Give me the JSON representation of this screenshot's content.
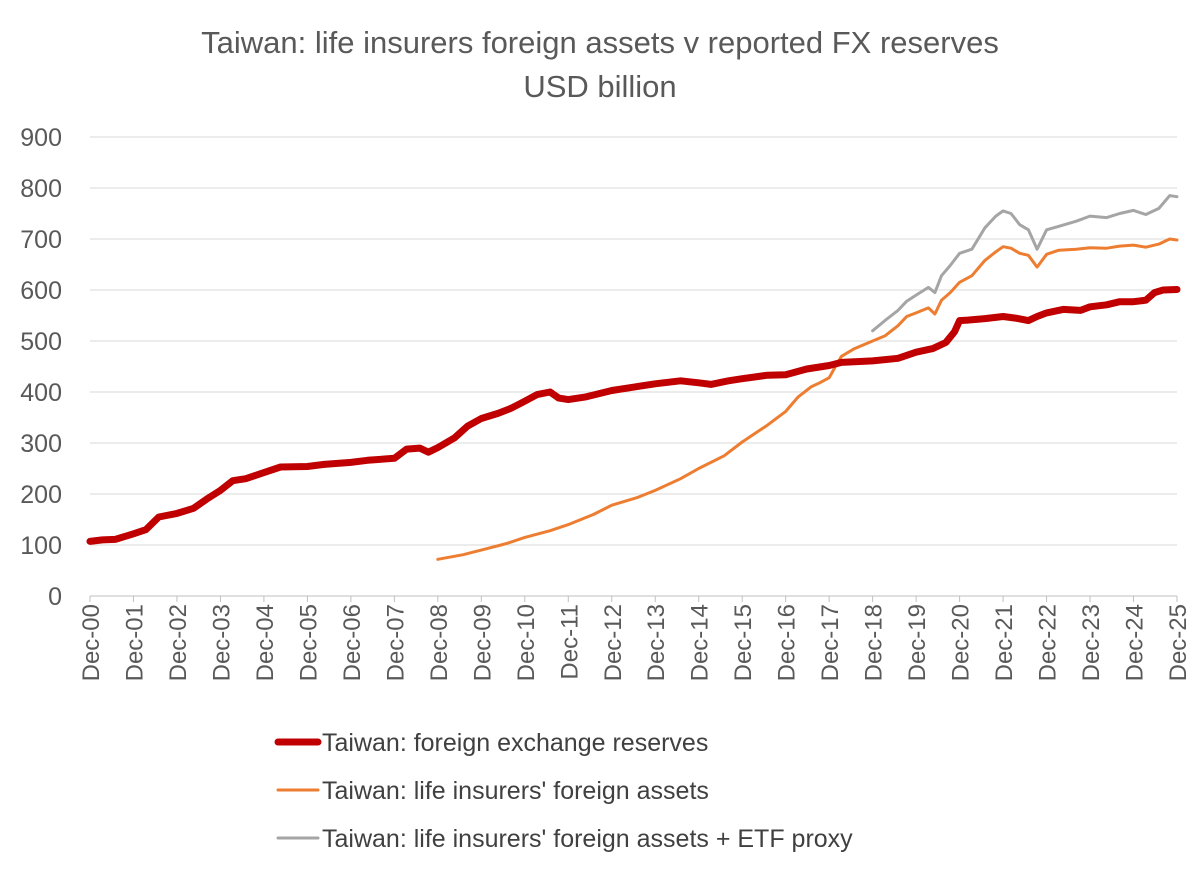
{
  "chart_data": {
    "type": "line",
    "title": "Taiwan: life insurers foreign assets v  reported FX reserves",
    "subtitle": "USD billion",
    "xlabel": "",
    "ylabel": "",
    "ylim": [
      0,
      900
    ],
    "yticks": [
      "0",
      "100",
      "200",
      "300",
      "400",
      "500",
      "600",
      "700",
      "800",
      "900"
    ],
    "xlim": [
      2000.917,
      2025.917
    ],
    "xtick_values": [
      2000.917,
      2001.917,
      2002.917,
      2003.917,
      2004.917,
      2005.917,
      2006.917,
      2007.917,
      2008.917,
      2009.917,
      2010.917,
      2011.917,
      2012.917,
      2013.917,
      2014.917,
      2015.917,
      2016.917,
      2017.917,
      2018.917,
      2019.917,
      2020.917,
      2021.917,
      2022.917,
      2023.917,
      2024.917,
      2025.917
    ],
    "xticks": [
      "Dec-00",
      "Dec-01",
      "Dec-02",
      "Dec-03",
      "Dec-04",
      "Dec-05",
      "Dec-06",
      "Dec-07",
      "Dec-08",
      "Dec-09",
      "Dec-10",
      "Dec-11",
      "Dec-12",
      "Dec-13",
      "Dec-14",
      "Dec-15",
      "Dec-16",
      "Dec-17",
      "Dec-18",
      "Dec-19",
      "Dec-20",
      "Dec-21",
      "Dec-22",
      "Dec-23",
      "Dec-24",
      "Dec-25"
    ],
    "grid": true,
    "legend_position": "bottom",
    "series": [
      {
        "name": "Taiwan: foreign exchange reserves",
        "color": "#c00000",
        "points": [
          [
            2000.917,
            107
          ],
          [
            2001.2,
            110
          ],
          [
            2001.5,
            111
          ],
          [
            2001.917,
            122
          ],
          [
            2002.2,
            130
          ],
          [
            2002.5,
            155
          ],
          [
            2002.917,
            162
          ],
          [
            2003.3,
            172
          ],
          [
            2003.6,
            190
          ],
          [
            2003.917,
            207
          ],
          [
            2004.2,
            226
          ],
          [
            2004.5,
            230
          ],
          [
            2004.917,
            242
          ],
          [
            2005.3,
            253
          ],
          [
            2005.917,
            254
          ],
          [
            2006.3,
            258
          ],
          [
            2006.917,
            262
          ],
          [
            2007.3,
            266
          ],
          [
            2007.917,
            270
          ],
          [
            2008.2,
            288
          ],
          [
            2008.5,
            290
          ],
          [
            2008.7,
            282
          ],
          [
            2008.917,
            291
          ],
          [
            2009.3,
            310
          ],
          [
            2009.6,
            333
          ],
          [
            2009.917,
            348
          ],
          [
            2010.3,
            358
          ],
          [
            2010.6,
            368
          ],
          [
            2010.917,
            382
          ],
          [
            2011.2,
            395
          ],
          [
            2011.5,
            400
          ],
          [
            2011.7,
            388
          ],
          [
            2011.917,
            385
          ],
          [
            2012.3,
            390
          ],
          [
            2012.917,
            403
          ],
          [
            2013.3,
            408
          ],
          [
            2013.917,
            416
          ],
          [
            2014.5,
            422
          ],
          [
            2014.917,
            418
          ],
          [
            2015.2,
            415
          ],
          [
            2015.6,
            422
          ],
          [
            2015.917,
            426
          ],
          [
            2016.5,
            433
          ],
          [
            2016.917,
            434
          ],
          [
            2017.4,
            445
          ],
          [
            2017.917,
            452
          ],
          [
            2018.2,
            458
          ],
          [
            2018.917,
            461
          ],
          [
            2019.5,
            466
          ],
          [
            2019.917,
            478
          ],
          [
            2020.3,
            485
          ],
          [
            2020.6,
            497
          ],
          [
            2020.8,
            518
          ],
          [
            2020.917,
            540
          ],
          [
            2021.1,
            541
          ],
          [
            2021.5,
            544
          ],
          [
            2021.917,
            548
          ],
          [
            2022.2,
            545
          ],
          [
            2022.5,
            540
          ],
          [
            2022.7,
            548
          ],
          [
            2022.917,
            555
          ],
          [
            2023.3,
            562
          ],
          [
            2023.7,
            560
          ],
          [
            2023.917,
            567
          ],
          [
            2024.3,
            571
          ],
          [
            2024.6,
            577
          ],
          [
            2024.917,
            577
          ],
          [
            2025.2,
            580
          ],
          [
            2025.4,
            595
          ],
          [
            2025.6,
            600
          ],
          [
            2025.917,
            601
          ]
        ]
      },
      {
        "name": "Taiwan: life insurers' foreign assets",
        "color": "#ed7d31",
        "points": [
          [
            2008.917,
            72
          ],
          [
            2009.5,
            81
          ],
          [
            2009.917,
            90
          ],
          [
            2010.5,
            103
          ],
          [
            2010.917,
            115
          ],
          [
            2011.5,
            128
          ],
          [
            2011.917,
            140
          ],
          [
            2012.5,
            160
          ],
          [
            2012.917,
            178
          ],
          [
            2013.5,
            193
          ],
          [
            2013.917,
            207
          ],
          [
            2014.5,
            230
          ],
          [
            2014.917,
            250
          ],
          [
            2015.5,
            275
          ],
          [
            2015.917,
            302
          ],
          [
            2016.5,
            335
          ],
          [
            2016.917,
            362
          ],
          [
            2017.2,
            390
          ],
          [
            2017.5,
            410
          ],
          [
            2017.7,
            418
          ],
          [
            2017.917,
            428
          ],
          [
            2018.05,
            448
          ],
          [
            2018.2,
            470
          ],
          [
            2018.5,
            485
          ],
          [
            2018.917,
            500
          ],
          [
            2019.2,
            510
          ],
          [
            2019.5,
            530
          ],
          [
            2019.7,
            548
          ],
          [
            2019.917,
            555
          ],
          [
            2020.2,
            565
          ],
          [
            2020.35,
            553
          ],
          [
            2020.5,
            580
          ],
          [
            2020.7,
            595
          ],
          [
            2020.917,
            615
          ],
          [
            2021.2,
            628
          ],
          [
            2021.5,
            658
          ],
          [
            2021.75,
            675
          ],
          [
            2021.917,
            685
          ],
          [
            2022.1,
            682
          ],
          [
            2022.3,
            672
          ],
          [
            2022.5,
            668
          ],
          [
            2022.7,
            645
          ],
          [
            2022.917,
            670
          ],
          [
            2023.2,
            678
          ],
          [
            2023.6,
            680
          ],
          [
            2023.917,
            683
          ],
          [
            2024.3,
            682
          ],
          [
            2024.6,
            686
          ],
          [
            2024.917,
            688
          ],
          [
            2025.2,
            684
          ],
          [
            2025.5,
            690
          ],
          [
            2025.75,
            700
          ],
          [
            2025.917,
            698
          ]
        ]
      },
      {
        "name": "Taiwan: life insurers' foreign assets + ETF proxy",
        "color": "#a5a5a5",
        "points": [
          [
            2018.917,
            520
          ],
          [
            2019.2,
            540
          ],
          [
            2019.5,
            560
          ],
          [
            2019.7,
            578
          ],
          [
            2019.917,
            590
          ],
          [
            2020.2,
            605
          ],
          [
            2020.35,
            595
          ],
          [
            2020.5,
            628
          ],
          [
            2020.7,
            648
          ],
          [
            2020.917,
            672
          ],
          [
            2021.2,
            680
          ],
          [
            2021.5,
            722
          ],
          [
            2021.75,
            745
          ],
          [
            2021.917,
            755
          ],
          [
            2022.1,
            750
          ],
          [
            2022.3,
            728
          ],
          [
            2022.5,
            718
          ],
          [
            2022.7,
            680
          ],
          [
            2022.917,
            718
          ],
          [
            2023.2,
            725
          ],
          [
            2023.6,
            735
          ],
          [
            2023.917,
            745
          ],
          [
            2024.3,
            742
          ],
          [
            2024.6,
            750
          ],
          [
            2024.917,
            756
          ],
          [
            2025.2,
            748
          ],
          [
            2025.5,
            760
          ],
          [
            2025.75,
            785
          ],
          [
            2025.917,
            783
          ]
        ]
      }
    ]
  }
}
